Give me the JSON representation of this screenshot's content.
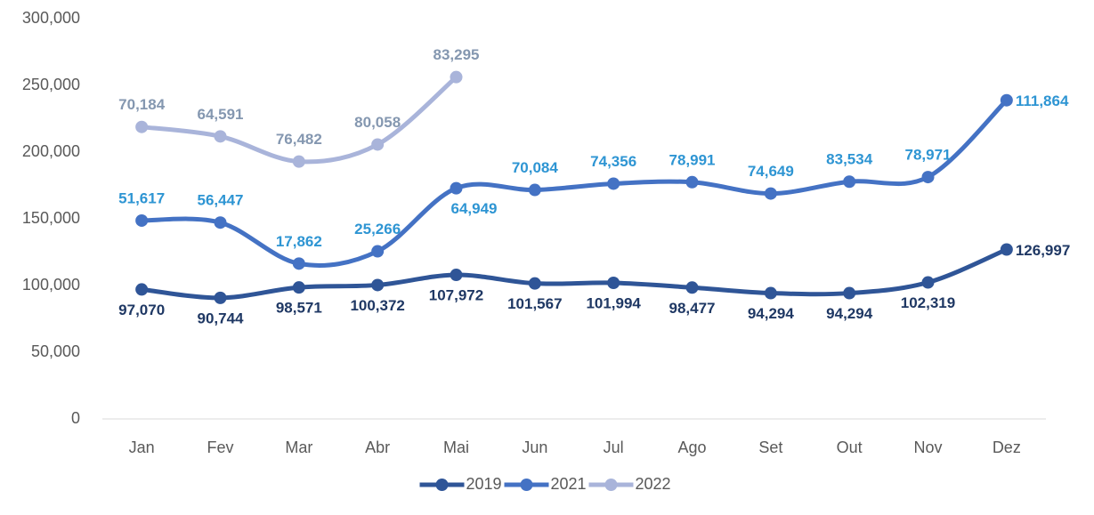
{
  "chart_data": {
    "type": "line",
    "stacked": true,
    "smooth": true,
    "categories": [
      "Jan",
      "Fev",
      "Mar",
      "Abr",
      "Mai",
      "Jun",
      "Jul",
      "Ago",
      "Set",
      "Out",
      "Nov",
      "Dez"
    ],
    "series": [
      {
        "name": "2019",
        "color": "#2f5597",
        "values": [
          97070,
          90744,
          98571,
          100372,
          107972,
          101567,
          101994,
          98477,
          94294,
          94294,
          102319,
          126997
        ],
        "value_labels": [
          "97,070",
          "90,744",
          "98,571",
          "100,372",
          "107,972",
          "101,567",
          "101,994",
          "98,477",
          "94,294",
          "94,294",
          "102,319",
          "126,997"
        ]
      },
      {
        "name": "2021",
        "color": "#4472c4",
        "values": [
          51617,
          56447,
          17862,
          25266,
          64949,
          70084,
          74356,
          78991,
          74649,
          83534,
          78971,
          111864
        ],
        "value_labels": [
          "51,617",
          "56,447",
          "17,862",
          "25,266",
          "64,949",
          "70,084",
          "74,356",
          "78,991",
          "74,649",
          "83,534",
          "78,971",
          "111,864"
        ]
      },
      {
        "name": "2022",
        "color": "#a9b4da",
        "values": [
          70184,
          64591,
          76482,
          80058,
          83295,
          null,
          null,
          null,
          null,
          null,
          null,
          null
        ],
        "value_labels": [
          "70,184",
          "64,591",
          "76,482",
          "80,058",
          "83,295",
          null,
          null,
          null,
          null,
          null,
          null,
          null
        ]
      }
    ],
    "ylim": [
      0,
      300000
    ],
    "yticks": [
      0,
      {
        "value": 50000,
        "label": "50,000"
      },
      {
        "value": 100000,
        "label": "100,000"
      },
      {
        "value": 150000,
        "label": "150,000"
      },
      {
        "value": 200000,
        "label": "200,000"
      },
      {
        "value": 250000,
        "label": "250,000"
      },
      {
        "value": 300000,
        "label": "300,000"
      }
    ],
    "legend": "bottom"
  }
}
